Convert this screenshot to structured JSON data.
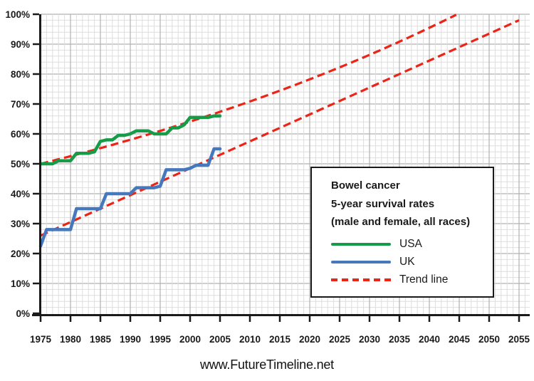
{
  "page": {
    "footer": "www.FutureTimeline.net",
    "background_color": "#ffffff"
  },
  "legend": {
    "title_line1": "Bowel cancer",
    "title_line2": "5-year survival rates",
    "title_line3": "(male and female, all races)",
    "entries": [
      {
        "label": "USA",
        "swatch": "solid-green-line"
      },
      {
        "label": "UK",
        "swatch": "solid-blue-line"
      },
      {
        "label": "Trend line",
        "swatch": "dashed-red-line"
      }
    ]
  },
  "chart_data": {
    "type": "line",
    "title": "Bowel cancer 5-year survival rates (male and female, all races)",
    "xlabel": "",
    "ylabel": "",
    "grid": true,
    "legend_position": "inside-right",
    "axis_color": "#1a1a1a",
    "trend_color": "#ea2417",
    "grid_minor_color": "#dedede",
    "grid_major_color": "#b0b0b0",
    "x_axis": {
      "range": [
        1975,
        2056.8
      ],
      "tick_step_years": 5,
      "minor_grid_step_years": 1,
      "tick_labels": [
        "1975",
        "1980",
        "1985",
        "1990",
        "1995",
        "2000",
        "2005",
        "2010",
        "2015",
        "2020",
        "2025",
        "2030",
        "2035",
        "2040",
        "2045",
        "2050",
        "2055"
      ]
    },
    "y_axis": {
      "range": [
        0,
        100
      ],
      "unit": "percent",
      "minor_grid_step": 2,
      "tick_labels": [
        "0%",
        "10%",
        "20%",
        "30%",
        "40%",
        "50%",
        "60%",
        "70%",
        "80%",
        "90%",
        "100%"
      ]
    },
    "series": [
      {
        "name": "USA",
        "color": "#169c49",
        "start_year": 1975,
        "step_years": 1,
        "values": [
          50,
          50,
          50,
          51,
          51,
          51,
          53.5,
          53.5,
          53.5,
          54,
          57.5,
          58,
          58,
          59.5,
          59.5,
          60,
          61,
          61,
          61,
          60,
          60,
          60,
          62,
          62,
          63,
          65.5,
          65.5,
          65.5,
          65.5,
          66,
          66
        ]
      },
      {
        "name": "UK",
        "color": "#4678bd",
        "start_year": 1975,
        "step_years": 1,
        "values": [
          22.5,
          28,
          28,
          28,
          28,
          28,
          35,
          35,
          35,
          35,
          35,
          40,
          40,
          40,
          40,
          40,
          42,
          42,
          42,
          42,
          42.5,
          48,
          48,
          48,
          48,
          48.5,
          49.5,
          49.5,
          49.5,
          55,
          55
        ]
      }
    ],
    "trend_lines": [
      {
        "name": "USA trend",
        "style": "dashed",
        "model": "exponential",
        "start_year": 1975,
        "start_value": 50,
        "growth_per_year": 0.01,
        "end_year": 2044.5,
        "end_value_approx": 100
      },
      {
        "name": "UK trend",
        "style": "dashed",
        "model": "linear",
        "start_year": 1975,
        "start_value": 26,
        "end_year": 2055,
        "end_value": 98
      }
    ]
  }
}
